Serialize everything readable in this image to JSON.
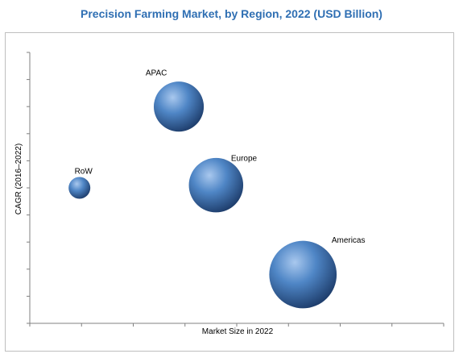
{
  "chart_data": {
    "type": "scatter",
    "title": "Precision Farming Market, by Region, 2022 (USD Billion)",
    "xlabel": "Market Size in 2022",
    "ylabel": "CAGR (2016–2022)",
    "xlim": [
      0,
      10
    ],
    "ylim": [
      0,
      10
    ],
    "grid": false,
    "series": [
      {
        "points": [
          {
            "label": "RoW",
            "x": 1.2,
            "y": 5.0,
            "size": 1.0
          },
          {
            "label": "APAC",
            "x": 3.6,
            "y": 8.0,
            "size": 2.3
          },
          {
            "label": "Europe",
            "x": 4.5,
            "y": 5.1,
            "size": 2.5
          },
          {
            "label": "Americas",
            "x": 6.6,
            "y": 1.8,
            "size": 3.1
          }
        ]
      }
    ],
    "colors": {
      "bubble_light": "#a9c8ee",
      "bubble_mid": "#4f86c6",
      "bubble_dark": "#1f3f6e",
      "title": "#2f6fb3"
    }
  }
}
